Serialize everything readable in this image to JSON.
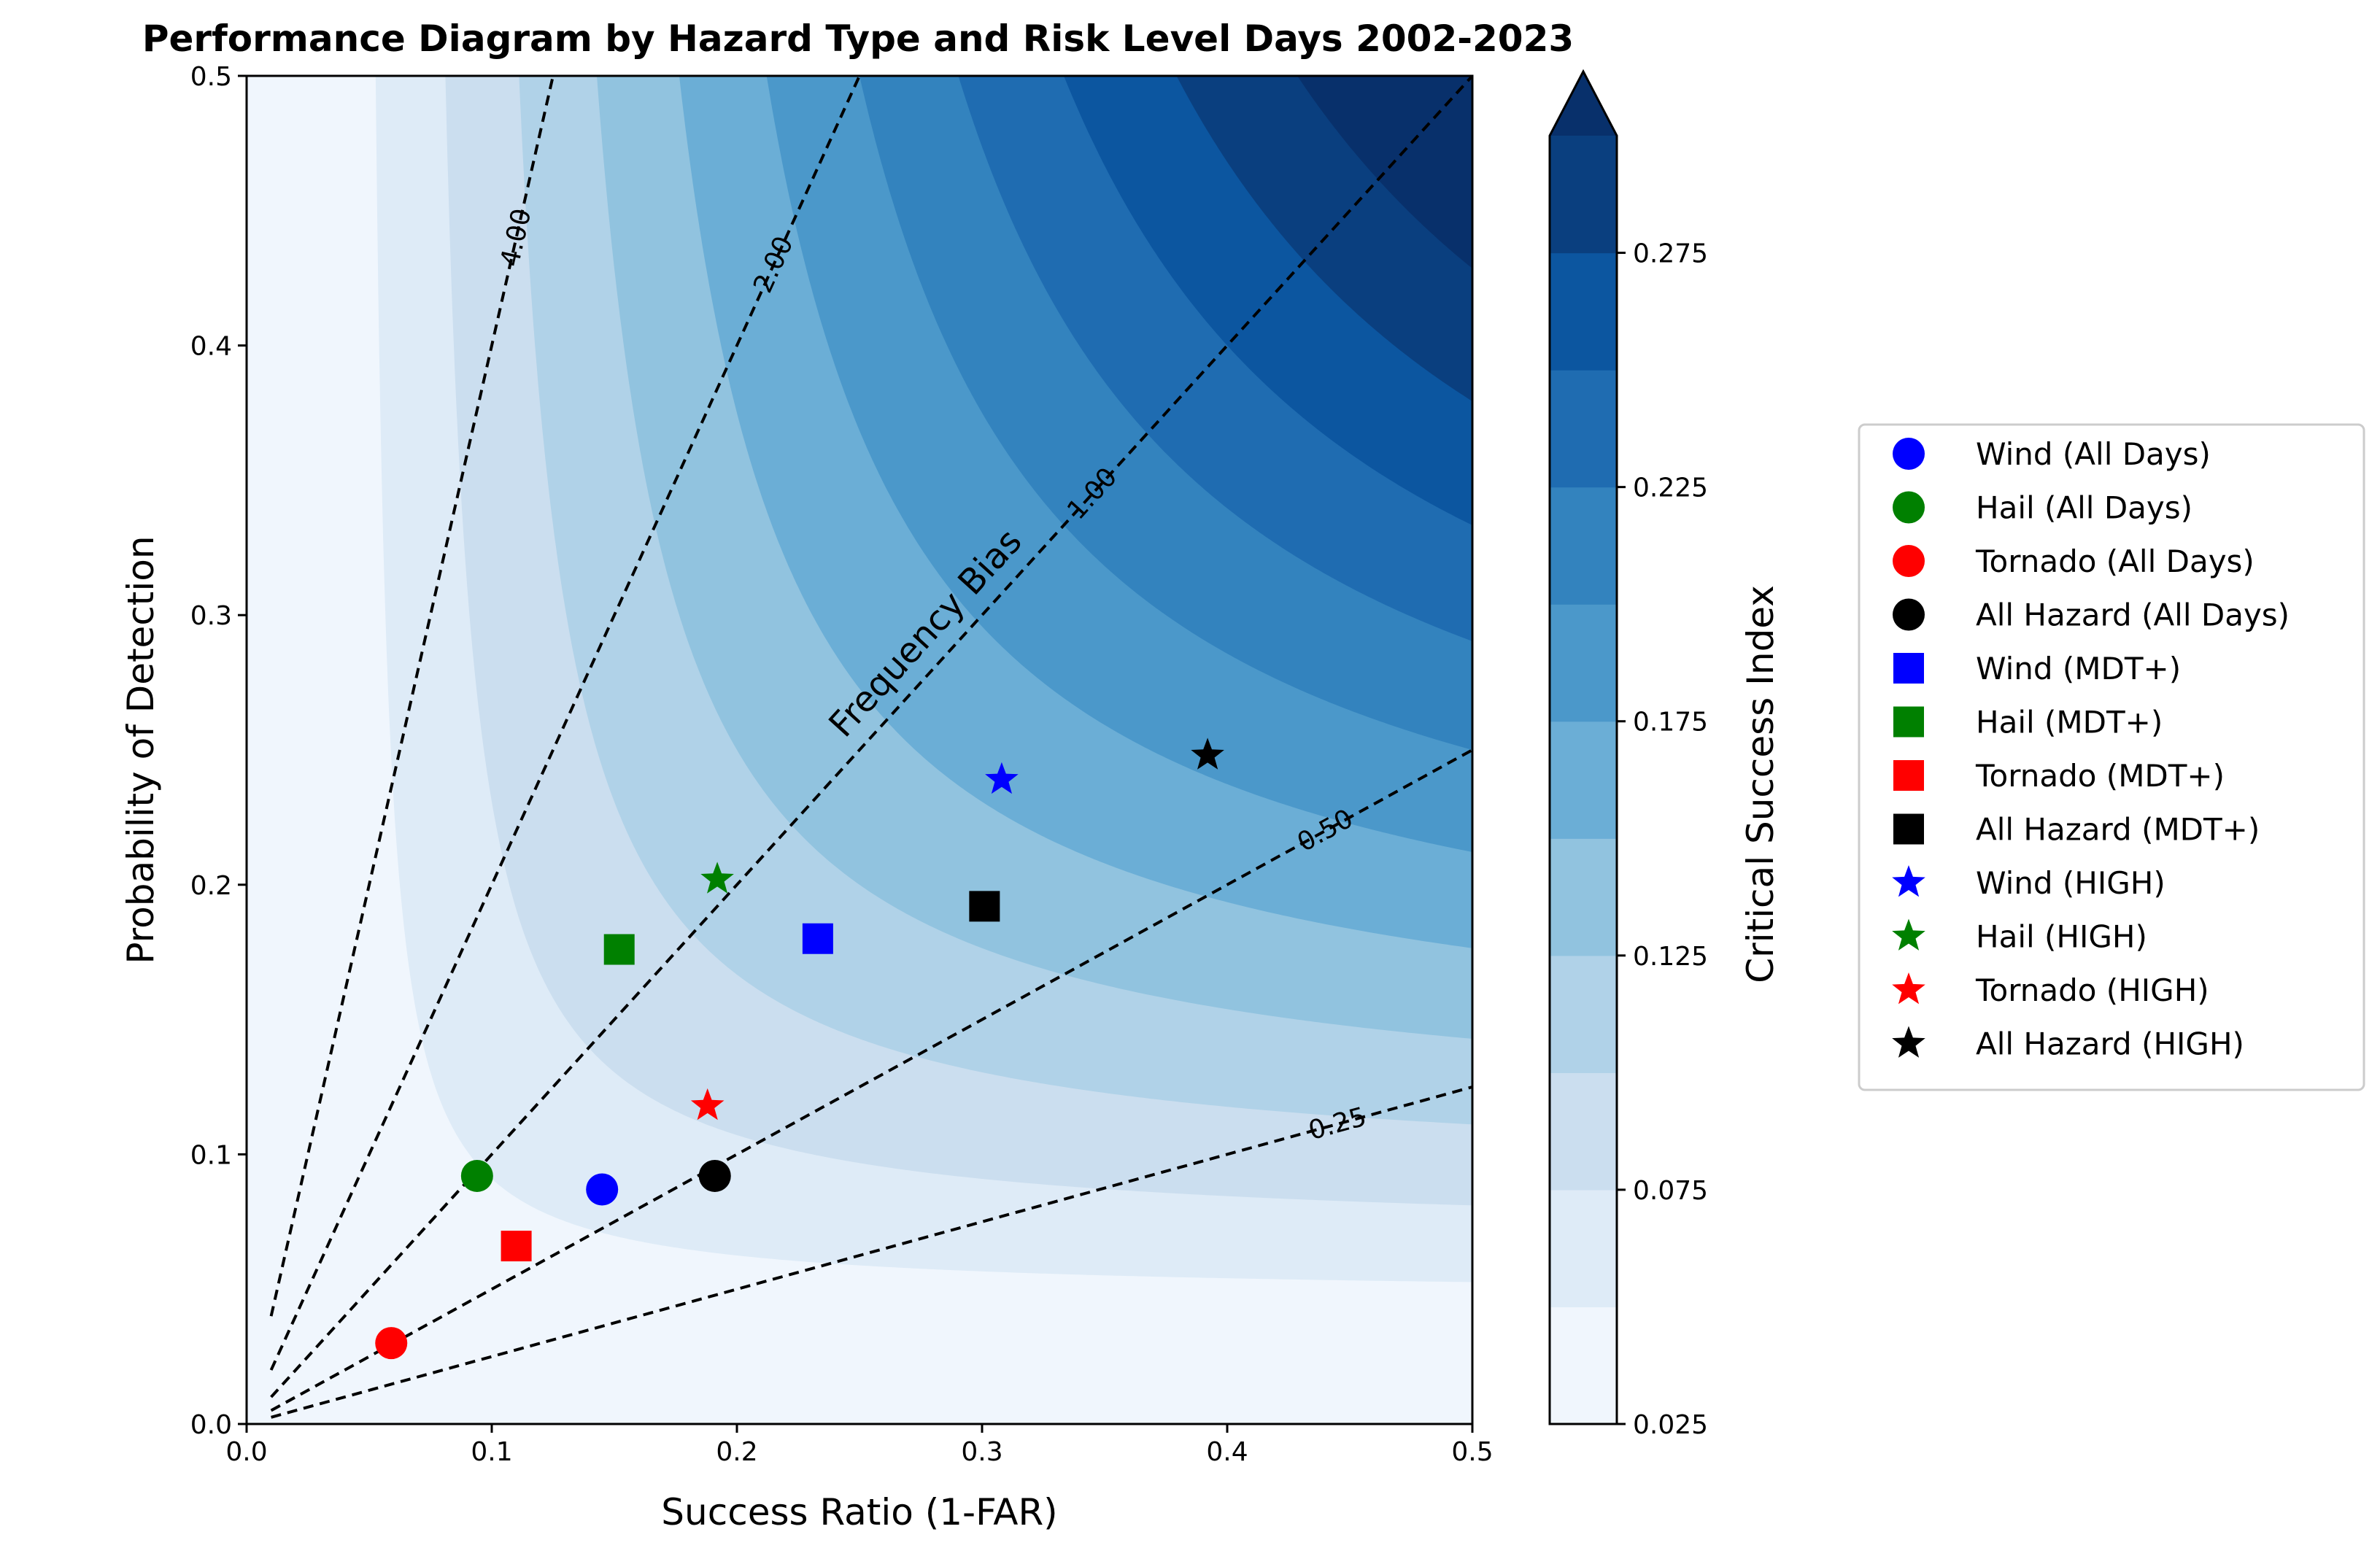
{
  "chart_data": {
    "type": "scatter",
    "title": "Performance Diagram by Hazard Type and Risk Level Days 2002-2023",
    "xlabel": "Success Ratio (1-FAR)",
    "ylabel": "Probability of Detection",
    "xlim": [
      0,
      0.5
    ],
    "ylim": [
      0,
      0.5
    ],
    "x_ticks": [
      "0.0",
      "0.1",
      "0.2",
      "0.3",
      "0.4",
      "0.5"
    ],
    "y_ticks": [
      "0.0",
      "0.1",
      "0.2",
      "0.3",
      "0.4",
      "0.5"
    ],
    "grid": false,
    "legend_position": "right, outside plot",
    "csi_contours": {
      "levels": [
        0.025,
        0.05,
        0.075,
        0.1,
        0.125,
        0.15,
        0.175,
        0.2,
        0.225,
        0.25,
        0.275,
        0.3
      ],
      "extend": "max",
      "colormap": "Blues",
      "colors": [
        "#f0f6fd",
        "#deebf7",
        "#cbdeef",
        "#b0d2e8",
        "#91c3df",
        "#6baed6",
        "#4b98ca",
        "#3383be",
        "#1f6cb1",
        "#0c56a0",
        "#0a3f7f",
        "#08306b"
      ]
    },
    "colorbar": {
      "label": "Critical Success Index",
      "ticks": [
        "0.025",
        "0.075",
        "0.125",
        "0.175",
        "0.225",
        "0.275"
      ]
    },
    "bias_lines": {
      "annotation": "Frequency Bias",
      "values": [
        0.25,
        0.5,
        1.0,
        2.0,
        4.0
      ],
      "labels": [
        "0.25",
        "0.50",
        "1.00",
        "2.00",
        "4.00"
      ]
    },
    "series": [
      {
        "name": "Wind (All Days)",
        "x": 0.145,
        "y": 0.087,
        "marker": "circle",
        "color": "#0000ff"
      },
      {
        "name": "Hail (All Days)",
        "x": 0.094,
        "y": 0.092,
        "marker": "circle",
        "color": "#008000"
      },
      {
        "name": "Tornado (All Days)",
        "x": 0.059,
        "y": 0.03,
        "marker": "circle",
        "color": "#ff0000"
      },
      {
        "name": "All Hazard (All Days)",
        "x": 0.191,
        "y": 0.092,
        "marker": "circle",
        "color": "#000000"
      },
      {
        "name": "Wind (MDT+)",
        "x": 0.233,
        "y": 0.18,
        "marker": "square",
        "color": "#0000ff"
      },
      {
        "name": "Hail (MDT+)",
        "x": 0.152,
        "y": 0.176,
        "marker": "square",
        "color": "#008000"
      },
      {
        "name": "Tornado (MDT+)",
        "x": 0.11,
        "y": 0.066,
        "marker": "square",
        "color": "#ff0000"
      },
      {
        "name": "All Hazard (MDT+)",
        "x": 0.301,
        "y": 0.192,
        "marker": "square",
        "color": "#000000"
      },
      {
        "name": "Wind (HIGH)",
        "x": 0.308,
        "y": 0.239,
        "marker": "star",
        "color": "#0000ff"
      },
      {
        "name": "Hail (HIGH)",
        "x": 0.192,
        "y": 0.202,
        "marker": "star",
        "color": "#008000"
      },
      {
        "name": "Tornado (HIGH)",
        "x": 0.188,
        "y": 0.118,
        "marker": "star",
        "color": "#ff0000"
      },
      {
        "name": "All Hazard (HIGH)",
        "x": 0.392,
        "y": 0.248,
        "marker": "star",
        "color": "#000000"
      }
    ]
  }
}
